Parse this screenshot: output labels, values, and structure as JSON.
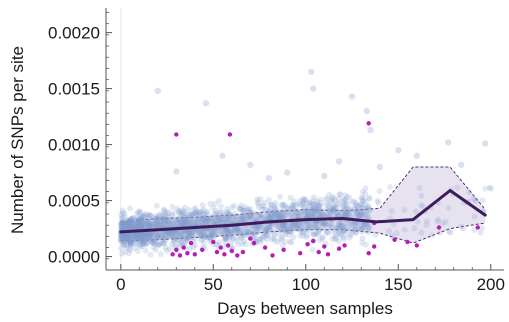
{
  "chart_data": {
    "type": "scatter",
    "xlabel": "Days between samples",
    "ylabel": "Number of SNPs per site",
    "xlim": [
      -8,
      205
    ],
    "ylim": [
      -0.00012,
      0.00222
    ],
    "x_ticks": [
      0,
      50,
      100,
      150,
      200
    ],
    "x_tick_labels": [
      "0",
      "50",
      "100",
      "150",
      "200"
    ],
    "y_ticks": [
      0,
      0.0005,
      0.001,
      0.0015,
      0.002
    ],
    "y_tick_labels": [
      "0.0000",
      "0.0005",
      "0.0010",
      "0.0015",
      "0.0020"
    ],
    "colors": {
      "blue_points": "#7f9ccb",
      "magenta_points": "#b61cb8",
      "trend_line": "#3d1c5c",
      "ci_band": "#c9bedb",
      "ci_edge": "#4a3570",
      "axis": "#555555"
    },
    "series": [
      {
        "kind": "blue_scatter",
        "points": [
          [
            20,
            0.00148
          ],
          [
            46,
            0.00137
          ],
          [
            103,
            0.00165
          ],
          [
            104,
            0.0015
          ],
          [
            125,
            0.00143
          ],
          [
            133,
            0.0013
          ],
          [
            135,
            0.00113
          ],
          [
            150,
            0.00095
          ],
          [
            160,
            0.0009
          ],
          [
            177,
            0.00102
          ],
          [
            184,
            0.00082
          ],
          [
            197,
            0.00101
          ],
          [
            192,
            0.0005
          ],
          [
            196,
            0.0004
          ],
          [
            140,
            0.0008
          ],
          [
            118,
            0.00085
          ],
          [
            70,
            0.00082
          ],
          [
            55,
            0.0009
          ],
          [
            90,
            0.00075
          ],
          [
            30,
            0.00076
          ],
          [
            80,
            0.0007
          ],
          [
            110,
            0.00072
          ]
        ]
      },
      {
        "kind": "magenta_scatter",
        "points": [
          [
            30,
            0.00109
          ],
          [
            59,
            0.00109
          ],
          [
            134,
            0.00119
          ],
          [
            137,
            0.0003
          ],
          [
            172,
            0.00026
          ],
          [
            193,
            0.00026
          ],
          [
            28,
            2e-05
          ],
          [
            30,
            6e-05
          ],
          [
            32,
            1e-05
          ],
          [
            34,
            8e-05
          ],
          [
            36,
            3e-05
          ],
          [
            38,
            0.00012
          ],
          [
            40,
            2e-05
          ],
          [
            44,
            6e-05
          ],
          [
            50,
            0.00013
          ],
          [
            52,
            4e-05
          ],
          [
            54,
            8e-05
          ],
          [
            56,
            2e-05
          ],
          [
            58,
            0.0001
          ],
          [
            60,
            5e-05
          ],
          [
            63,
            1e-05
          ],
          [
            66,
            4e-05
          ],
          [
            70,
            0.00016
          ],
          [
            72,
            0.00012
          ],
          [
            78,
            8e-05
          ],
          [
            82,
            1e-05
          ],
          [
            88,
            6e-05
          ],
          [
            97,
            3e-05
          ],
          [
            101,
            0.00011
          ],
          [
            104,
            0.00014
          ],
          [
            107,
            4e-05
          ],
          [
            110,
            9e-05
          ],
          [
            112,
            2e-05
          ],
          [
            118,
            7e-05
          ],
          [
            121,
            0.0001
          ],
          [
            134,
            3e-05
          ],
          [
            137,
            9e-05
          ],
          [
            148,
            0.00015
          ],
          [
            155,
            0.00013
          ],
          [
            160,
            0.0001
          ]
        ]
      },
      {
        "kind": "trend_line",
        "points": [
          [
            0,
            0.00022
          ],
          [
            20,
            0.00024
          ],
          [
            40,
            0.00026
          ],
          [
            60,
            0.00028
          ],
          [
            80,
            0.00031
          ],
          [
            100,
            0.00033
          ],
          [
            120,
            0.00034
          ],
          [
            138,
            0.00031
          ],
          [
            158,
            0.00033
          ],
          [
            178,
            0.00059
          ],
          [
            197,
            0.00037
          ]
        ]
      },
      {
        "kind": "ci_band",
        "upper": [
          [
            0,
            0.00031
          ],
          [
            20,
            0.00034
          ],
          [
            40,
            0.00035
          ],
          [
            60,
            0.00037
          ],
          [
            80,
            0.0004
          ],
          [
            100,
            0.00042
          ],
          [
            120,
            0.00041
          ],
          [
            140,
            0.00043
          ],
          [
            158,
            0.0008
          ],
          [
            178,
            0.0008
          ],
          [
            197,
            0.00042
          ]
        ],
        "lower": [
          [
            0,
            0.00014
          ],
          [
            20,
            0.00015
          ],
          [
            40,
            0.00017
          ],
          [
            60,
            0.00019
          ],
          [
            80,
            0.00022
          ],
          [
            100,
            0.00024
          ],
          [
            120,
            0.00024
          ],
          [
            140,
            0.00021
          ],
          [
            158,
            0.00012
          ],
          [
            178,
            0.00025
          ],
          [
            197,
            0.0003
          ]
        ]
      }
    ]
  }
}
